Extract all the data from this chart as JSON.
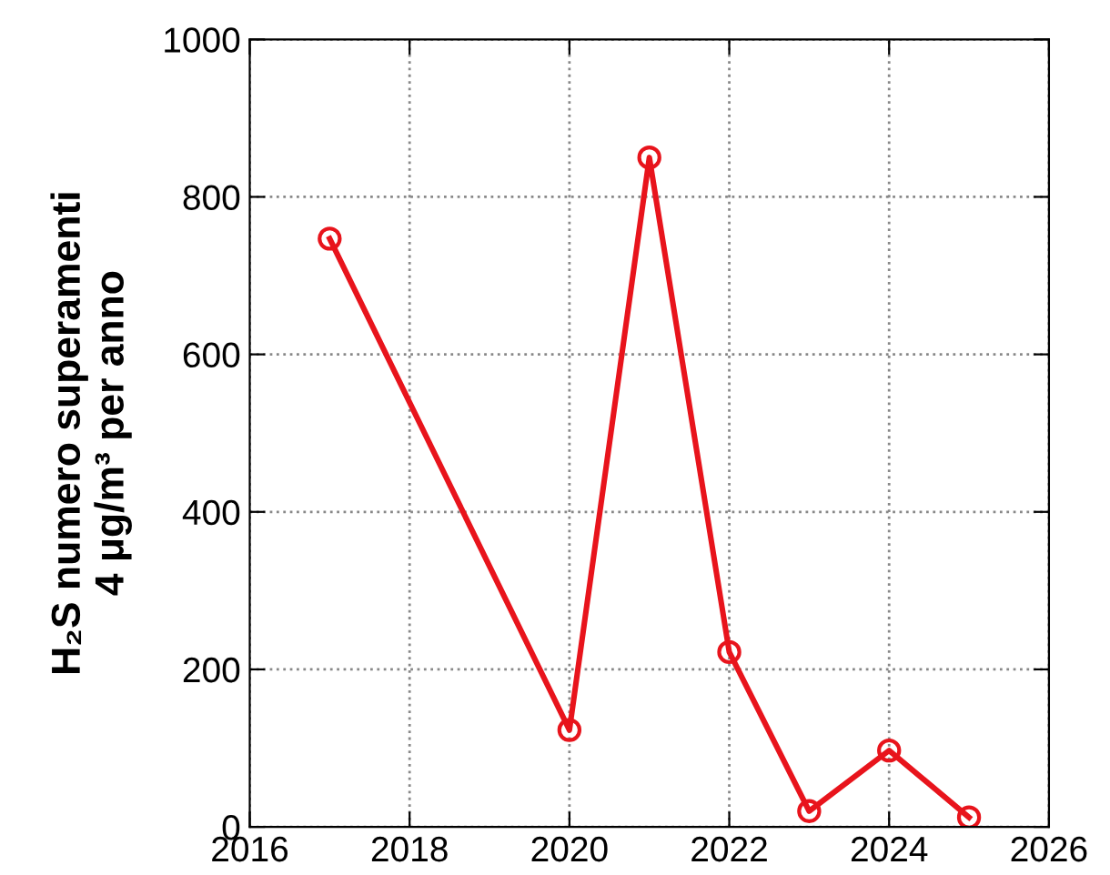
{
  "chart_data": {
    "type": "line",
    "ylabel": "H₂S numero superamenti\n4 μg/m³ per anno",
    "x": [
      2017,
      2020,
      2021,
      2022,
      2023,
      2024,
      2025
    ],
    "series": [
      {
        "color": "#e8141c",
        "values": [
          747,
          123,
          850,
          222,
          20,
          97,
          12
        ]
      }
    ],
    "xlim": [
      2016,
      2026
    ],
    "xticks": [
      2016,
      2018,
      2020,
      2022,
      2024,
      2026
    ],
    "ylim": [
      0,
      1000
    ],
    "yticks": [
      0,
      200,
      400,
      600,
      800,
      1000
    ],
    "grid": true,
    "marker": "circle",
    "line_style": "solid"
  }
}
